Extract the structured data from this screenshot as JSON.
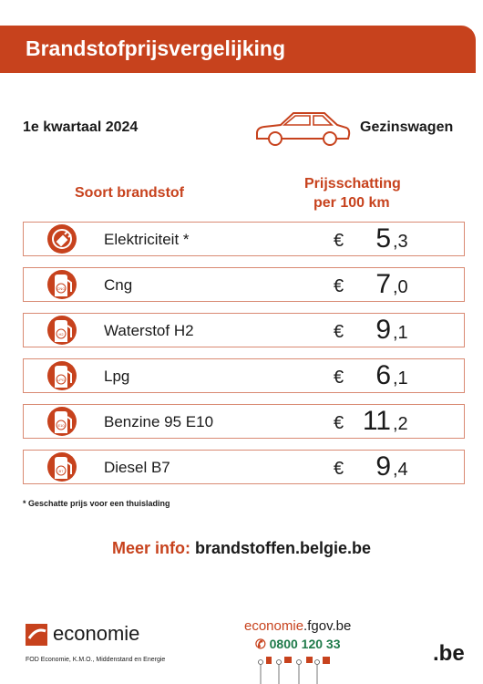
{
  "header": {
    "title": "Brandstofprijsvergelijking"
  },
  "period": "1e kwartaal 2024",
  "vehicle": "Gezinswagen",
  "columns": {
    "fuel": "Soort brandstof",
    "price_line1": "Prijsschatting",
    "price_line2": "per 100 km"
  },
  "currency": "€",
  "rows": [
    {
      "name": "Elektriciteit *",
      "price_int": "5",
      "price_dec": ",3",
      "icon": ""
    },
    {
      "name": "Cng",
      "price_int": "7",
      "price_dec": ",0",
      "icon": "CNG"
    },
    {
      "name": "Waterstof H2",
      "price_int": "9",
      "price_dec": ",1",
      "icon": "H2"
    },
    {
      "name": "Lpg",
      "price_int": "6",
      "price_dec": ",1",
      "icon": "LPG"
    },
    {
      "name": "Benzine 95 E10",
      "price_int": "11",
      "price_dec": ",2",
      "icon": "E10"
    },
    {
      "name": "Diesel B7",
      "price_int": "9",
      "price_dec": ",4",
      "icon": "B7"
    }
  ],
  "note": "* Geschatte prijs voor een thuislading",
  "more_info": {
    "label": "Meer info:",
    "url": "brandstoffen.belgie.be"
  },
  "footer": {
    "logo": "economie",
    "org": "FOD Economie, K.M.O., Middenstand en Energie",
    "site_main": "economie",
    "site_rest": ".fgov.be",
    "phone": "0800 120 33",
    "be": ".be"
  }
}
